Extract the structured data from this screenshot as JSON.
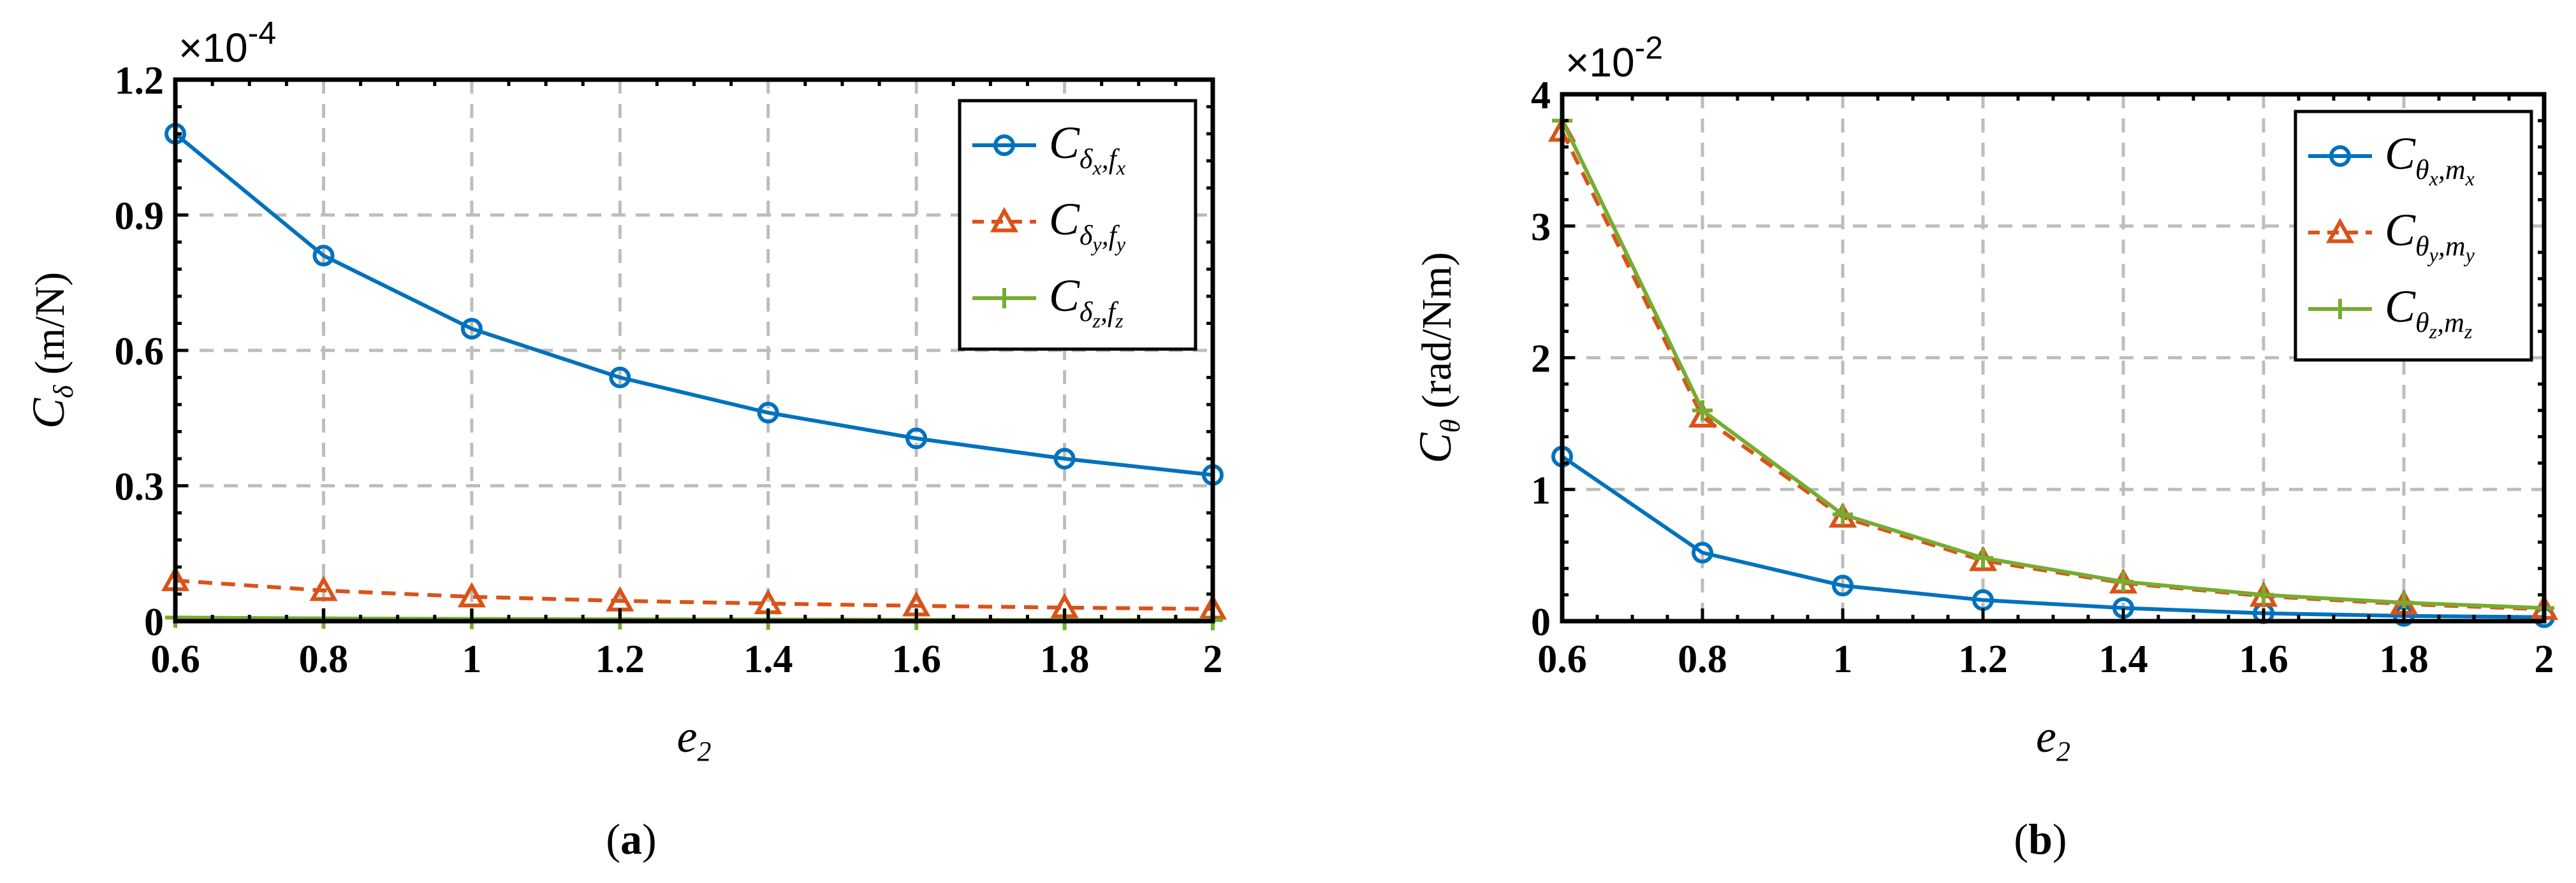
{
  "colors": {
    "s1": "#0072BD",
    "s2": "#D95319",
    "s3": "#77AC30"
  },
  "chart_data": [
    {
      "type": "line",
      "caption_letter": "a",
      "exponent": "×10",
      "exponent_power": "-4",
      "xlabel_base": "e",
      "xlabel_sub": "2",
      "ylabel_base": "C",
      "ylabel_sub": "δ",
      "ylabel_unit": "(m/N)",
      "xlim": [
        0.6,
        2.0
      ],
      "ylim": [
        0,
        1.2
      ],
      "xticks": [
        "0.6",
        "0.8",
        "1",
        "1.2",
        "1.4",
        "1.6",
        "1.8",
        "2"
      ],
      "yticks": [
        "0",
        "0.3",
        "0.6",
        "0.9",
        "1.2"
      ],
      "x": [
        0.6,
        0.8,
        1.0,
        1.2,
        1.4,
        1.6,
        1.8,
        2.0
      ],
      "legend_position": "top-right",
      "series": [
        {
          "name": "C_δx,fx",
          "base": "C",
          "s1": "δ",
          "s1sub": "x",
          "s2": "f",
          "s2sub": "x",
          "marker": "circle",
          "dash": "solid",
          "color": "#0072BD",
          "values": [
            1.08,
            0.81,
            0.648,
            0.54,
            0.462,
            0.405,
            0.36,
            0.324
          ]
        },
        {
          "name": "C_δy,fy",
          "base": "C",
          "s1": "δ",
          "s1sub": "y",
          "s2": "f",
          "s2sub": "y",
          "marker": "triangle",
          "dash": "dashed",
          "color": "#D95319",
          "values": [
            0.09,
            0.068,
            0.054,
            0.045,
            0.039,
            0.034,
            0.03,
            0.027
          ]
        },
        {
          "name": "C_δz,fz",
          "base": "C",
          "s1": "δ",
          "s1sub": "z",
          "s2": "f",
          "s2sub": "z",
          "marker": "plus",
          "dash": "solid",
          "color": "#77AC30",
          "values": [
            0.008,
            0.006,
            0.005,
            0.004,
            0.0035,
            0.003,
            0.0027,
            0.0024
          ]
        }
      ]
    },
    {
      "type": "line",
      "caption_letter": "b",
      "exponent": "×10",
      "exponent_power": "-2",
      "xlabel_base": "e",
      "xlabel_sub": "2",
      "ylabel_base": "C",
      "ylabel_sub": "θ",
      "ylabel_unit": "(rad/Nm)",
      "xlim": [
        0.6,
        2.0
      ],
      "ylim": [
        0,
        4
      ],
      "xticks": [
        "0.6",
        "0.8",
        "1",
        "1.2",
        "1.4",
        "1.6",
        "1.8",
        "2"
      ],
      "yticks": [
        "0",
        "1",
        "2",
        "3",
        "4"
      ],
      "x": [
        0.6,
        0.8,
        1.0,
        1.2,
        1.4,
        1.6,
        1.8,
        2.0
      ],
      "legend_position": "top-right",
      "series": [
        {
          "name": "C_θx,mx",
          "base": "C",
          "s1": "θ",
          "s1sub": "x",
          "s2": "m",
          "s2sub": "x",
          "marker": "circle",
          "dash": "solid",
          "color": "#0072BD",
          "values": [
            1.25,
            0.52,
            0.27,
            0.16,
            0.1,
            0.06,
            0.04,
            0.03
          ]
        },
        {
          "name": "C_θy,my",
          "base": "C",
          "s1": "θ",
          "s1sub": "y",
          "s2": "m",
          "s2sub": "y",
          "marker": "triangle",
          "dash": "dashed",
          "color": "#D95319",
          "values": [
            3.72,
            1.55,
            0.79,
            0.46,
            0.29,
            0.19,
            0.13,
            0.09
          ]
        },
        {
          "name": "C_θz,mz",
          "base": "C",
          "s1": "θ",
          "s1sub": "z",
          "s2": "m",
          "s2sub": "z",
          "marker": "plus",
          "dash": "solid",
          "color": "#77AC30",
          "values": [
            3.8,
            1.6,
            0.81,
            0.48,
            0.3,
            0.2,
            0.14,
            0.1
          ]
        }
      ]
    }
  ]
}
